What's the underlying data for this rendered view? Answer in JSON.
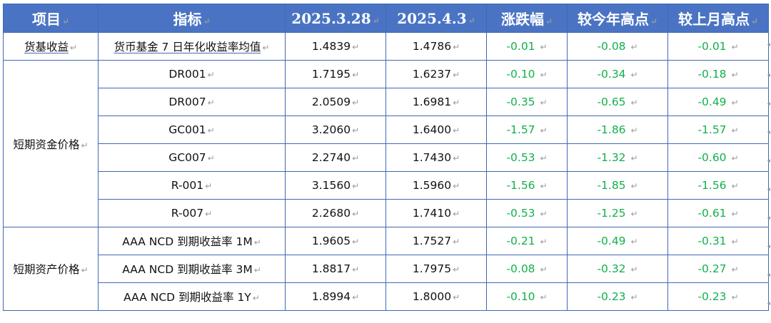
{
  "header": {
    "item": "项目",
    "indicator": "指标",
    "date1": "2025.3.28",
    "date2": "2025.4.3",
    "change": "涨跌幅",
    "vs_year_high": "较今年高点",
    "vs_month_high": "较上月高点"
  },
  "return_mark": "↵",
  "groups": {
    "money_fund": "货基收益",
    "short_funding": "短期资金价格",
    "short_assets": "短期资产价格"
  },
  "rows": [
    {
      "indicator": "货币基金 7 日年化收益率均值",
      "v1": "1.4839",
      "v2": "1.4786",
      "chg": "-0.01",
      "yh": "-0.08",
      "mh": "-0.01"
    },
    {
      "indicator": "DR001",
      "v1": "1.7195",
      "v2": "1.6237",
      "chg": "-0.10",
      "yh": "-0.34",
      "mh": "-0.18"
    },
    {
      "indicator": "DR007",
      "v1": "2.0509",
      "v2": "1.6981",
      "chg": "-0.35",
      "yh": "-0.65",
      "mh": "-0.49"
    },
    {
      "indicator": "GC001",
      "v1": "3.2060",
      "v2": "1.6400",
      "chg": "-1.57",
      "yh": "-1.86",
      "mh": "-1.57"
    },
    {
      "indicator": "GC007",
      "v1": "2.2740",
      "v2": "1.7430",
      "chg": "-0.53",
      "yh": "-1.32",
      "mh": "-0.60"
    },
    {
      "indicator": "R-001",
      "v1": "3.1560",
      "v2": "1.5960",
      "chg": "-1.56",
      "yh": "-1.85",
      "mh": "-1.56"
    },
    {
      "indicator": "R-007",
      "v1": "2.2680",
      "v2": "1.7410",
      "chg": "-0.53",
      "yh": "-1.25",
      "mh": "-0.61"
    },
    {
      "indicator": "AAA NCD 到期收益率 1M",
      "v1": "1.9605",
      "v2": "1.7527",
      "chg": "-0.21",
      "yh": "-0.49",
      "mh": "-0.31"
    },
    {
      "indicator": "AAA NCD 到期收益率 3M",
      "v1": "1.8817",
      "v2": "1.7975",
      "chg": "-0.08",
      "yh": "-0.32",
      "mh": "-0.27"
    },
    {
      "indicator": "AAA NCD 到期收益率 1Y",
      "v1": "1.8994",
      "v2": "1.8000",
      "chg": "-0.10",
      "yh": "-0.23",
      "mh": "-0.23"
    }
  ],
  "colors": {
    "header_bg": "#4a74c3",
    "border": "#3f69b5",
    "negative_green": "#12b04d"
  }
}
